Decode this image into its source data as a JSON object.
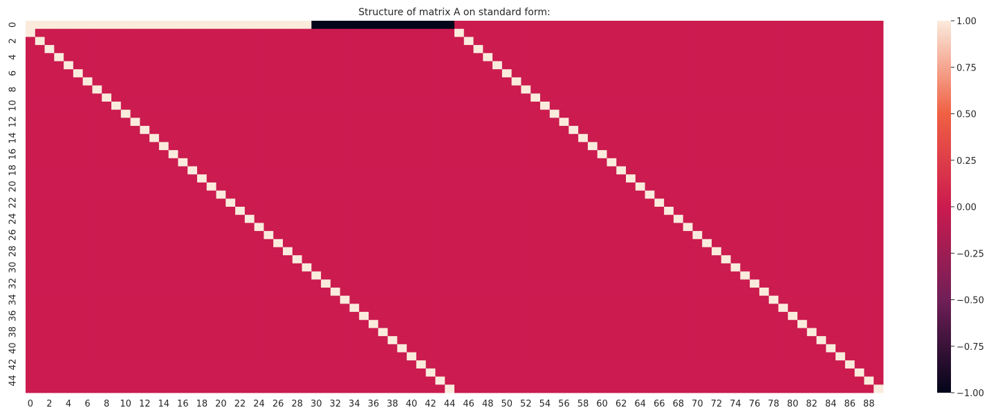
{
  "chart_data": {
    "type": "heatmap",
    "title": "Structure of matrix A on standard form:",
    "xlabel": "",
    "ylabel": "",
    "rows": 46,
    "cols": 90,
    "x_tick_labels": [
      "0",
      "2",
      "4",
      "6",
      "8",
      "10",
      "12",
      "14",
      "16",
      "18",
      "20",
      "22",
      "24",
      "26",
      "28",
      "30",
      "32",
      "34",
      "36",
      "38",
      "40",
      "42",
      "44",
      "46",
      "48",
      "50",
      "52",
      "54",
      "56",
      "58",
      "60",
      "62",
      "64",
      "66",
      "68",
      "70",
      "72",
      "74",
      "76",
      "78",
      "80",
      "82",
      "84",
      "86",
      "88"
    ],
    "y_tick_labels": [
      "0",
      "2",
      "4",
      "6",
      "8",
      "10",
      "12",
      "14",
      "16",
      "18",
      "20",
      "22",
      "24",
      "26",
      "28",
      "30",
      "32",
      "34",
      "36",
      "38",
      "40",
      "42",
      "44"
    ],
    "default_value": 0,
    "nonzero_cells": [
      {
        "row": 0,
        "cols": [
          0,
          29
        ],
        "value": 1
      },
      {
        "row": 0,
        "cols": [
          30,
          44
        ],
        "value": -1
      },
      {
        "diagonal": "row i, col i-1",
        "rows": [
          1,
          45
        ],
        "value": 1
      },
      {
        "diagonal": "row i, col i+44",
        "rows": [
          1,
          45
        ],
        "value": 1
      }
    ],
    "colorbar": {
      "range": [
        -1.0,
        1.0
      ],
      "ticks": [
        "1.00",
        "0.75",
        "0.50",
        "0.25",
        "0.00",
        "−0.25",
        "−0.50",
        "−0.75",
        "−1.00"
      ],
      "colors": [
        "#03051a",
        "#701f57",
        "#cb1b4f",
        "#f06043",
        "#faebdd"
      ]
    }
  }
}
